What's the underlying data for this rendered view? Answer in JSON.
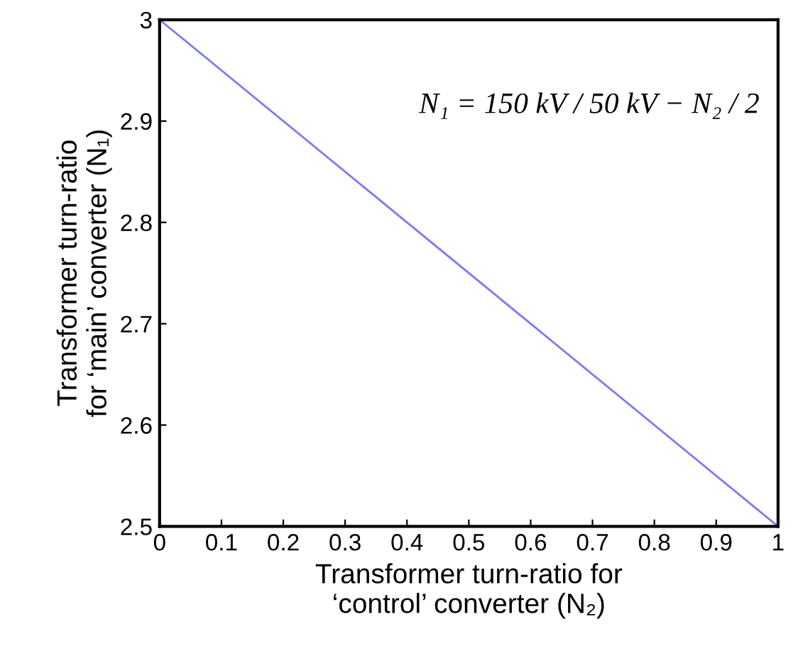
{
  "chart_data": {
    "type": "line",
    "xlabel": "Transformer turn-ratio for\n‘control’ converter (N₂)",
    "ylabel": "Transformer turn-ratio\nfor ‘main’ converter (N₁)",
    "x": [
      0,
      1
    ],
    "series": [
      {
        "color": "#7b7bf0",
        "values": [
          3,
          2.5
        ]
      }
    ],
    "xlim": [
      0,
      1
    ],
    "ylim": [
      2.5,
      3
    ],
    "xticks": [
      0,
      0.1,
      0.2,
      0.3,
      0.4,
      0.5,
      0.6,
      0.7,
      0.8,
      0.9,
      1
    ],
    "yticks": [
      2.5,
      2.6,
      2.7,
      2.8,
      2.9,
      3
    ],
    "annotations": [
      "N₁ = 150 kV / 50 kV − N₂ / 2"
    ],
    "grid": false,
    "legend": false,
    "marker": "none",
    "line_style": "solid"
  }
}
